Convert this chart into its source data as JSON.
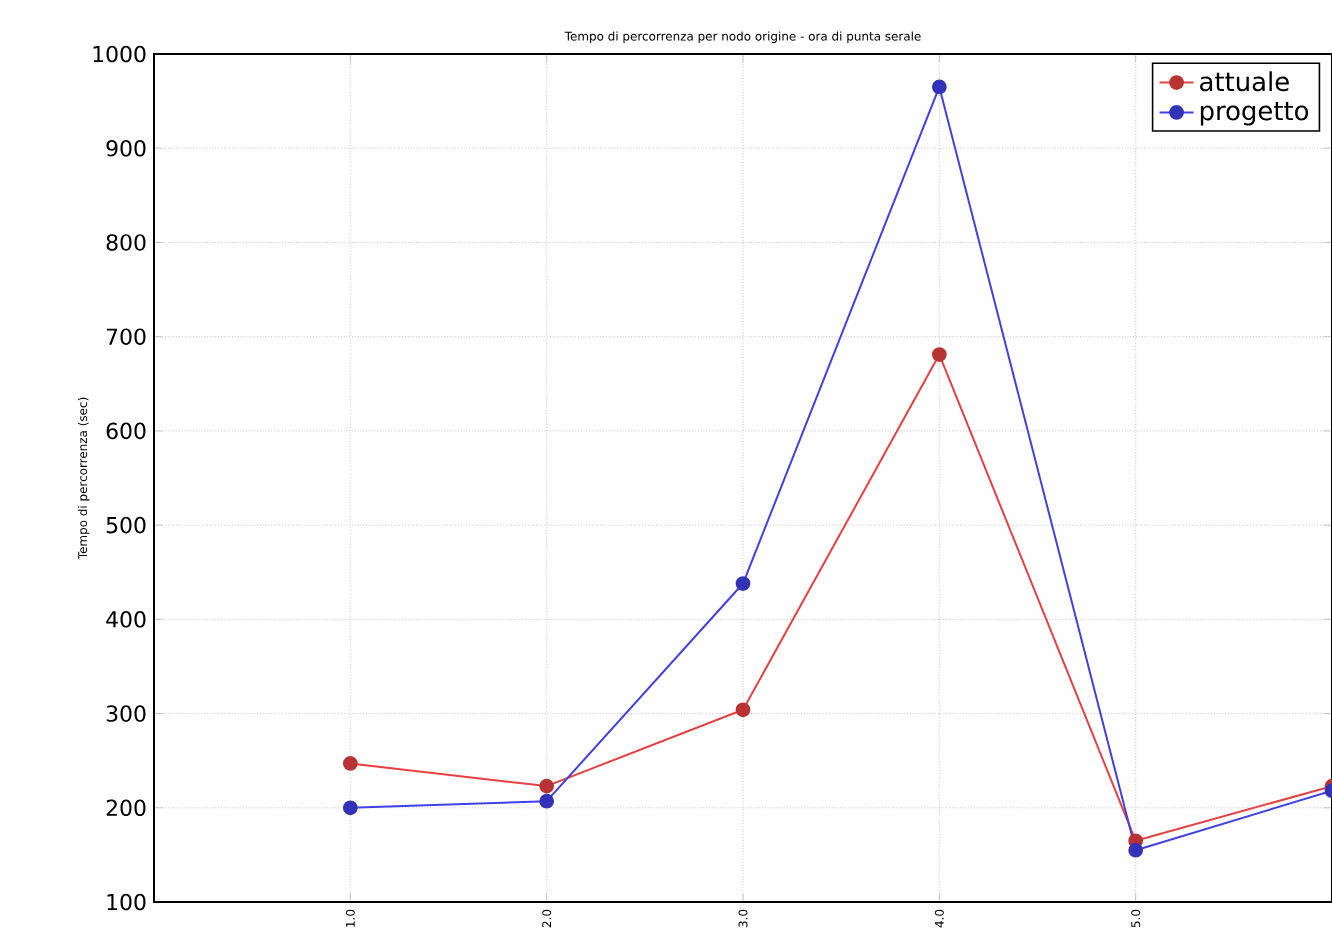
{
  "chart_data": {
    "type": "line",
    "title": "Tempo di percorrenza per nodo origine - ora di punta serale",
    "ylabel": "Tempo di percorrenza (sec)",
    "x": [
      1,
      2,
      3,
      4,
      5,
      6
    ],
    "series": [
      {
        "name": "attuale",
        "color": "#e84040",
        "values": [
          247,
          223,
          304,
          681,
          165,
          223
        ]
      },
      {
        "name": "progetto",
        "color": "#4040e8",
        "values": [
          200,
          207,
          438,
          965,
          155,
          218
        ]
      }
    ],
    "xlim": [
      0,
      6
    ],
    "ylim": [
      100,
      1000
    ],
    "xticks": [
      {
        "value": 1,
        "label": "1.0"
      },
      {
        "value": 2,
        "label": "2.0"
      },
      {
        "value": 3,
        "label": "3.0"
      },
      {
        "value": 4,
        "label": "4.0"
      },
      {
        "value": 5,
        "label": "5.0"
      }
    ],
    "yticks": [
      100,
      200,
      300,
      400,
      500,
      600,
      700,
      800,
      900,
      1000
    ],
    "grid": true,
    "legend": "top right",
    "marker": "circle",
    "line_style": "solid"
  }
}
